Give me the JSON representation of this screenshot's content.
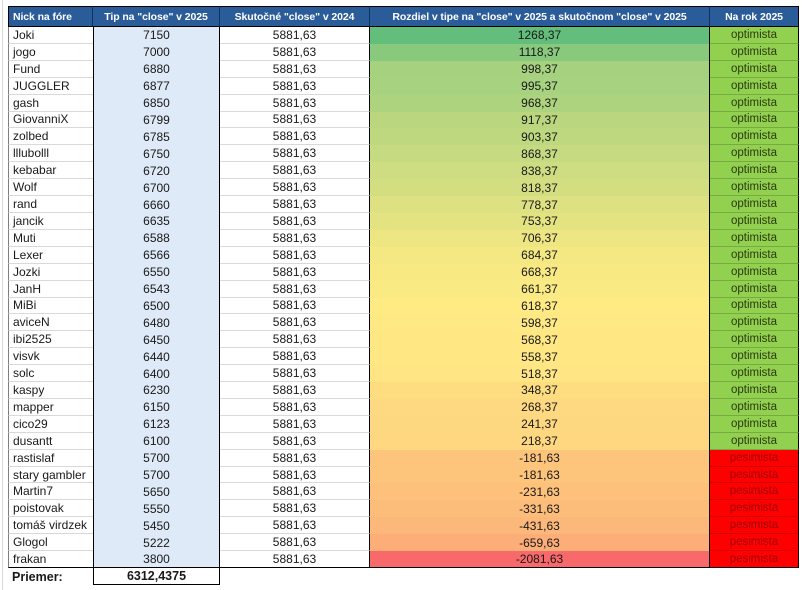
{
  "table": {
    "columns": [
      "Nick na fóre",
      "Tip na \"close\" v 2025",
      "Skutočné \"close\" v 2024",
      "Rozdiel v tipe na \"close\" v 2025 a skutočnom \"close\" v 2025",
      "Na rok 2025"
    ],
    "rows": [
      {
        "nick": "Joki",
        "tip": "7150",
        "actual": "5881,63",
        "diff": "1268,37",
        "status": "optimista",
        "diff_bg": "#63BE7B"
      },
      {
        "nick": "jogo",
        "tip": "7000",
        "actual": "5881,63",
        "diff": "1118,37",
        "status": "optimista",
        "diff_bg": "#88C97D"
      },
      {
        "nick": "Fund",
        "tip": "6880",
        "actual": "5881,63",
        "diff": "998,37",
        "status": "optimista",
        "diff_bg": "#A6D17F"
      },
      {
        "nick": "JUGGLER",
        "tip": "6877",
        "actual": "5881,63",
        "diff": "995,37",
        "status": "optimista",
        "diff_bg": "#A7D27F"
      },
      {
        "nick": "gash",
        "tip": "6850",
        "actual": "5881,63",
        "diff": "968,37",
        "status": "optimista",
        "diff_bg": "#ADD37F"
      },
      {
        "nick": "GiovanniX",
        "tip": "6799",
        "actual": "5881,63",
        "diff": "917,37",
        "status": "optimista",
        "diff_bg": "#BAD780"
      },
      {
        "nick": "zolbed",
        "tip": "6785",
        "actual": "5881,63",
        "diff": "903,37",
        "status": "optimista",
        "diff_bg": "#BED880"
      },
      {
        "nick": "lllubolll",
        "tip": "6750",
        "actual": "5881,63",
        "diff": "868,37",
        "status": "optimista",
        "diff_bg": "#C6DB81"
      },
      {
        "nick": "kebabar",
        "tip": "6720",
        "actual": "5881,63",
        "diff": "838,37",
        "status": "optimista",
        "diff_bg": "#CEDD81"
      },
      {
        "nick": "Wolf",
        "tip": "6700",
        "actual": "5881,63",
        "diff": "818,37",
        "status": "optimista",
        "diff_bg": "#D3DE81"
      },
      {
        "nick": "rand",
        "tip": "6660",
        "actual": "5881,63",
        "diff": "778,37",
        "status": "optimista",
        "diff_bg": "#DDE182"
      },
      {
        "nick": "jancik",
        "tip": "6635",
        "actual": "5881,63",
        "diff": "753,37",
        "status": "optimista",
        "diff_bg": "#E3E382"
      },
      {
        "nick": "Muti",
        "tip": "6588",
        "actual": "5881,63",
        "diff": "706,37",
        "status": "optimista",
        "diff_bg": "#EEE683"
      },
      {
        "nick": "Lexer",
        "tip": "6566",
        "actual": "5881,63",
        "diff": "684,37",
        "status": "optimista",
        "diff_bg": "#F4E883"
      },
      {
        "nick": "Jozki",
        "tip": "6550",
        "actual": "5881,63",
        "diff": "668,37",
        "status": "optimista",
        "diff_bg": "#F8E983"
      },
      {
        "nick": "JanH",
        "tip": "6543",
        "actual": "5881,63",
        "diff": "661,37",
        "status": "optimista",
        "diff_bg": "#FAEA84"
      },
      {
        "nick": "MiBi",
        "tip": "6500",
        "actual": "5881,63",
        "diff": "618,37",
        "status": "optimista",
        "diff_bg": "#FFEA84"
      },
      {
        "nick": "aviceN",
        "tip": "6480",
        "actual": "5881,63",
        "diff": "598,37",
        "status": "optimista",
        "diff_bg": "#FFE984"
      },
      {
        "nick": "ibi2525",
        "tip": "6450",
        "actual": "5881,63",
        "diff": "568,37",
        "status": "optimista",
        "diff_bg": "#FFE883"
      },
      {
        "nick": "visvk",
        "tip": "6440",
        "actual": "5881,63",
        "diff": "558,37",
        "status": "optimista",
        "diff_bg": "#FFE783"
      },
      {
        "nick": "solc",
        "tip": "6400",
        "actual": "5881,63",
        "diff": "518,37",
        "status": "optimista",
        "diff_bg": "#FFE583"
      },
      {
        "nick": "kaspy",
        "tip": "6230",
        "actual": "5881,63",
        "diff": "348,37",
        "status": "optimista",
        "diff_bg": "#FEDD81"
      },
      {
        "nick": "mapper",
        "tip": "6150",
        "actual": "5881,63",
        "diff": "268,37",
        "status": "optimista",
        "diff_bg": "#FED981"
      },
      {
        "nick": "cico29",
        "tip": "6123",
        "actual": "5881,63",
        "diff": "241,37",
        "status": "optimista",
        "diff_bg": "#FED880"
      },
      {
        "nick": "dusantt",
        "tip": "6100",
        "actual": "5881,63",
        "diff": "218,37",
        "status": "optimista",
        "diff_bg": "#FED780"
      },
      {
        "nick": "rastislaf",
        "tip": "5700",
        "actual": "5881,63",
        "diff": "-181,63",
        "status": "pesimista",
        "diff_bg": "#FDC47C"
      },
      {
        "nick": "stary gambler",
        "tip": "5700",
        "actual": "5881,63",
        "diff": "-181,63",
        "status": "pesimista",
        "diff_bg": "#FDC47C"
      },
      {
        "nick": "Martin7",
        "tip": "5650",
        "actual": "5881,63",
        "diff": "-231,63",
        "status": "pesimista",
        "diff_bg": "#FDC17C"
      },
      {
        "nick": "poistovak",
        "tip": "5550",
        "actual": "5881,63",
        "diff": "-331,63",
        "status": "pesimista",
        "diff_bg": "#FCBD7B"
      },
      {
        "nick": "tomáš virdzek",
        "tip": "5450",
        "actual": "5881,63",
        "diff": "-431,63",
        "status": "pesimista",
        "diff_bg": "#FCB87A"
      },
      {
        "nick": "Glogol",
        "tip": "5222",
        "actual": "5881,63",
        "diff": "-659,63",
        "status": "pesimista",
        "diff_bg": "#FCAD78"
      },
      {
        "nick": "frakan",
        "tip": "3800",
        "actual": "5881,63",
        "diff": "-2081,63",
        "status": "pesimista",
        "diff_bg": "#F8696B"
      }
    ],
    "footer": {
      "label": "Priemer:",
      "value": "6312,4375"
    }
  },
  "colors": {
    "header_bg": "#2A5C9A",
    "header_text": "#FFFFFF",
    "tip_col_bg": "#DEEAF7",
    "optimista_bg": "#92D050",
    "optimista_text": "#2B3A10",
    "pesimista_bg": "#FF0000",
    "pesimista_text": "#9C0006",
    "grid_line": "#D9D9D9",
    "diff_scale_max": "#63BE7B",
    "diff_scale_mid": "#FFEB84",
    "diff_scale_min": "#F8696B"
  }
}
